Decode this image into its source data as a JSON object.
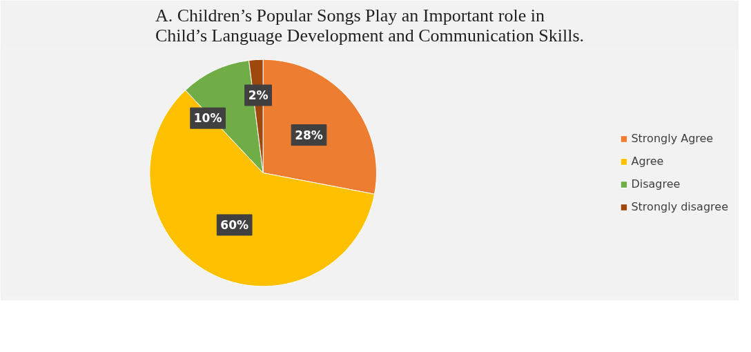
{
  "chart_data": {
    "type": "pie",
    "title": "A. Children’s Popular Songs Play an Important role in\nChild’s Language Development and Communication Skills.",
    "categories": [
      "Strongly Agree",
      "Agree",
      "Disagree",
      "Strongly disagree"
    ],
    "values": [
      28,
      60,
      10,
      2
    ],
    "colors": [
      "#ed7d31",
      "#ffc000",
      "#70ad47",
      "#9e480e"
    ],
    "value_labels": [
      "28%",
      "60%",
      "10%",
      "2%"
    ],
    "legend": "right"
  }
}
